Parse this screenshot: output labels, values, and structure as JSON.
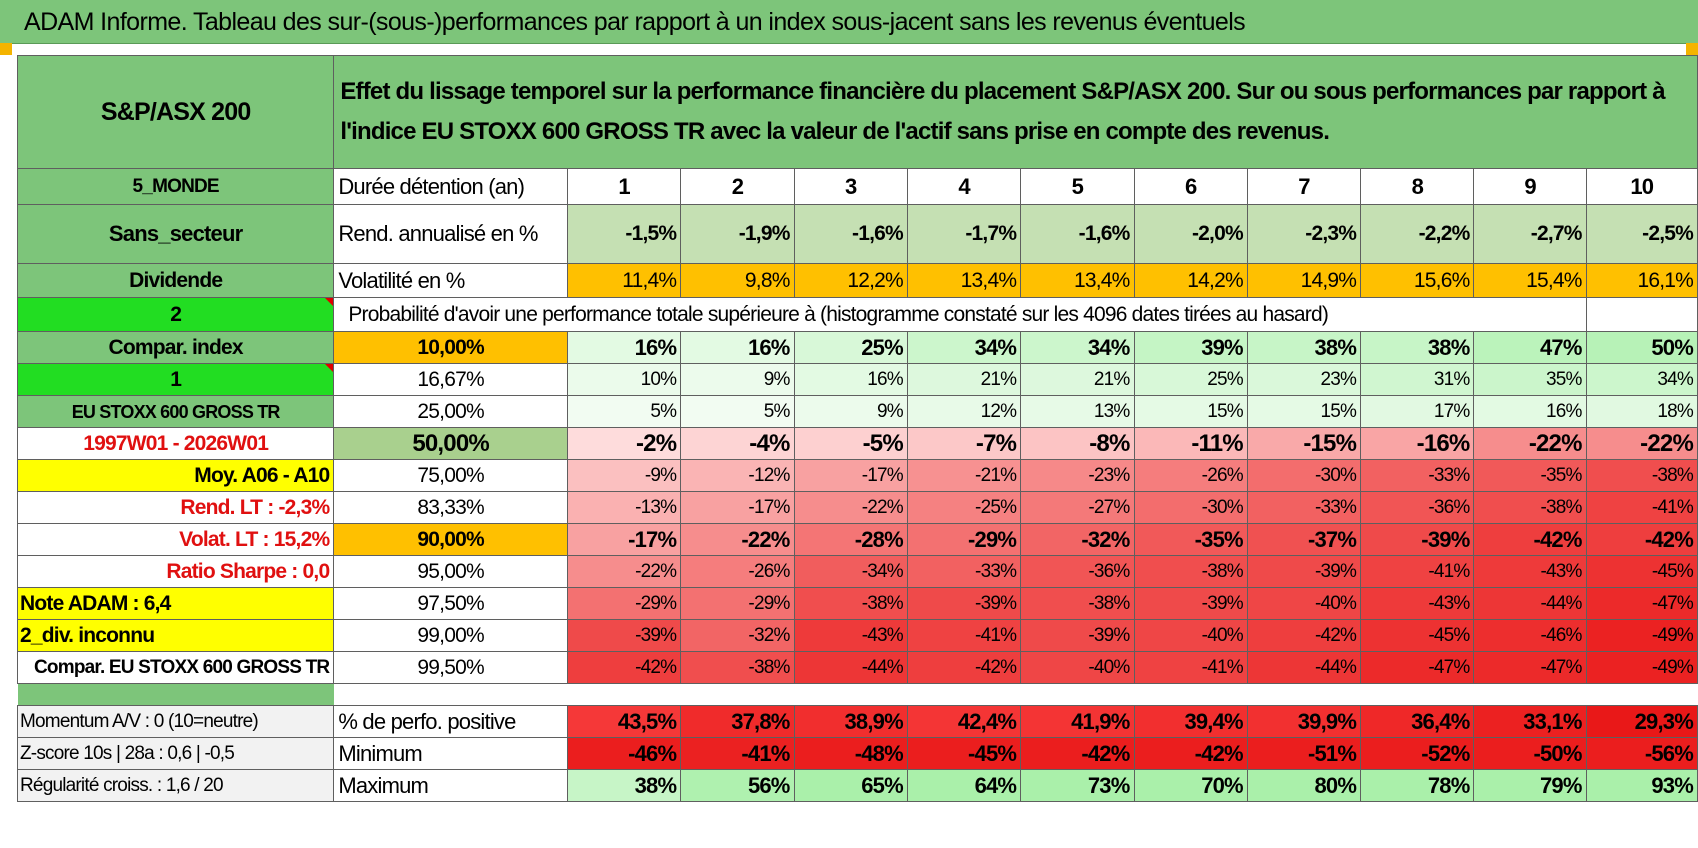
{
  "title": "ADAM Informe. Tableau des sur-(sous-)performances par rapport à un index sous-jacent sans les revenus éventuels",
  "colors": {
    "green_header": "#7dc57a",
    "bright_green": "#22dd22",
    "yellow": "#ffff00",
    "orange": "#ffc000",
    "red_text": "#e01010"
  },
  "header": {
    "asset": "S&P/ASX 200",
    "description_line1": "Effet du lissage temporel sur la performance financière du placement S&P/ASX 200. Sur ou sous performances par rapport à",
    "description_line2": "l'indice EU STOXX 600 GROSS TR avec la valeur de l'actif sans prise en compte des revenus."
  },
  "left": {
    "region": "5_MONDE",
    "sector": "Sans_secteur",
    "dividend": "Dividende",
    "num2": "2",
    "compar_index": "Compar. index",
    "num1": "1",
    "index_name": "EU STOXX 600 GROSS TR",
    "period": "1997W01 - 2026W01",
    "moy": "Moy. A06 - A10",
    "rend_lt": "Rend. LT :    -2,3%",
    "volat_lt": "Volat. LT :    15,2%",
    "sharpe": "Ratio Sharpe :     0,0",
    "note": "Note ADAM : 6,4",
    "div": "2_div. inconnu",
    "compar": "Compar. EU STOXX 600 GROSS TR",
    "momentum": "Momentum A/V : 0 (10=neutre)",
    "zscore": "Z-score 10s | 28a : 0,6 | -0,5",
    "regularite": "Régularité croiss. : 1,6 / 20"
  },
  "table": {
    "duree_label": "Durée détention (an)",
    "years": [
      "1",
      "2",
      "3",
      "4",
      "5",
      "6",
      "7",
      "8",
      "9",
      "10"
    ],
    "rend_label": "Rend. annualisé en %",
    "rend": [
      "-1,5%",
      "-1,9%",
      "-1,6%",
      "-1,7%",
      "-1,6%",
      "-2,0%",
      "-2,3%",
      "-2,2%",
      "-2,7%",
      "-2,5%"
    ],
    "vol_label": "Volatilité en %",
    "vol": [
      "11,4%",
      "9,8%",
      "12,2%",
      "13,4%",
      "13,4%",
      "14,2%",
      "14,9%",
      "15,6%",
      "15,4%",
      "16,1%"
    ],
    "prob_label": "Probabilité d'avoir une performance totale supérieure à (histogramme constaté sur les 4096 dates tirées au hasard)",
    "rows": [
      {
        "p": "10,00%",
        "v": [
          "16%",
          "16%",
          "25%",
          "34%",
          "34%",
          "39%",
          "38%",
          "38%",
          "47%",
          "50%"
        ]
      },
      {
        "p": "16,67%",
        "v": [
          "10%",
          "9%",
          "16%",
          "21%",
          "21%",
          "25%",
          "23%",
          "31%",
          "35%",
          "34%"
        ]
      },
      {
        "p": "25,00%",
        "v": [
          "5%",
          "5%",
          "9%",
          "12%",
          "13%",
          "15%",
          "15%",
          "17%",
          "16%",
          "18%"
        ]
      },
      {
        "p": "50,00%",
        "v": [
          "-2%",
          "-4%",
          "-5%",
          "-7%",
          "-8%",
          "-11%",
          "-15%",
          "-16%",
          "-22%",
          "-22%"
        ]
      },
      {
        "p": "75,00%",
        "v": [
          "-9%",
          "-12%",
          "-17%",
          "-21%",
          "-23%",
          "-26%",
          "-30%",
          "-33%",
          "-35%",
          "-38%"
        ]
      },
      {
        "p": "83,33%",
        "v": [
          "-13%",
          "-17%",
          "-22%",
          "-25%",
          "-27%",
          "-30%",
          "-33%",
          "-36%",
          "-38%",
          "-41%"
        ]
      },
      {
        "p": "90,00%",
        "v": [
          "-17%",
          "-22%",
          "-28%",
          "-29%",
          "-32%",
          "-35%",
          "-37%",
          "-39%",
          "-42%",
          "-42%"
        ]
      },
      {
        "p": "95,00%",
        "v": [
          "-22%",
          "-26%",
          "-34%",
          "-33%",
          "-36%",
          "-38%",
          "-39%",
          "-41%",
          "-43%",
          "-45%"
        ]
      },
      {
        "p": "97,50%",
        "v": [
          "-29%",
          "-29%",
          "-38%",
          "-39%",
          "-38%",
          "-39%",
          "-40%",
          "-43%",
          "-44%",
          "-47%"
        ]
      },
      {
        "p": "99,00%",
        "v": [
          "-39%",
          "-32%",
          "-43%",
          "-41%",
          "-39%",
          "-40%",
          "-42%",
          "-45%",
          "-46%",
          "-49%"
        ]
      },
      {
        "p": "99,50%",
        "v": [
          "-42%",
          "-38%",
          "-44%",
          "-42%",
          "-40%",
          "-41%",
          "-44%",
          "-47%",
          "-47%",
          "-49%"
        ]
      }
    ],
    "pos_label": "% de perfo. positive",
    "pos": [
      "43,5%",
      "37,8%",
      "38,9%",
      "42,4%",
      "41,9%",
      "39,4%",
      "39,9%",
      "36,4%",
      "33,1%",
      "29,3%"
    ],
    "min_label": "Minimum",
    "min": [
      "-46%",
      "-41%",
      "-48%",
      "-45%",
      "-42%",
      "-42%",
      "-51%",
      "-52%",
      "-50%",
      "-56%"
    ],
    "max_label": "Maximum",
    "max": [
      "38%",
      "56%",
      "65%",
      "64%",
      "73%",
      "70%",
      "80%",
      "78%",
      "79%",
      "93%"
    ]
  }
}
